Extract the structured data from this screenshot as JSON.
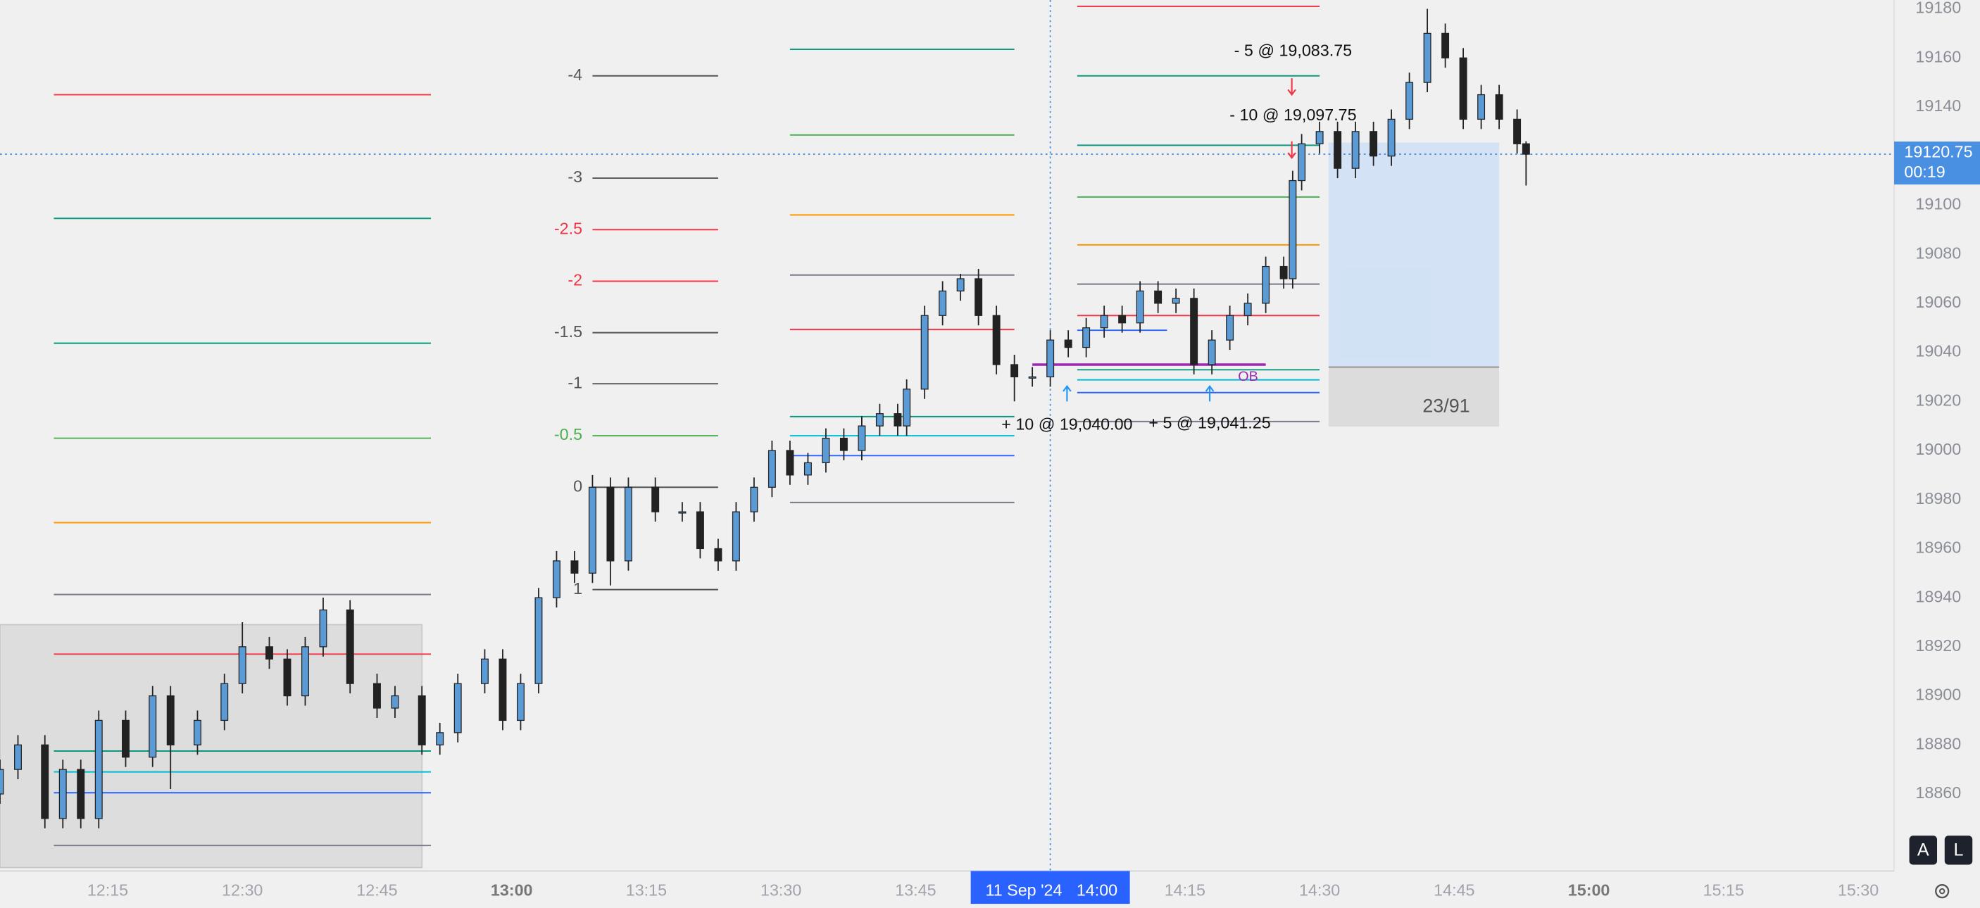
{
  "chart_data": {
    "type": "candlestick",
    "xlim": [
      "12:03",
      "15:34"
    ],
    "ylim": [
      18828.6,
      19183.6
    ],
    "yticks": [
      19180,
      19160,
      19140,
      19120,
      19100,
      19080,
      19060,
      19040,
      19020,
      19000,
      18980,
      18960,
      18940,
      18920,
      18900,
      18880,
      18860
    ],
    "xticks": [
      "12:15",
      "12:30",
      "12:45",
      "13:00",
      "13:15",
      "13:30",
      "13:45",
      "14:15",
      "14:30",
      "14:45",
      "15:00",
      "15:15",
      "15:30"
    ],
    "candles": {
      "up_color": "#5b9bd5",
      "down_color": "#222222",
      "x": [
        "12:03",
        "12:05",
        "12:08",
        "12:10",
        "12:12",
        "12:14",
        "12:17",
        "12:20",
        "12:22",
        "12:25",
        "12:28",
        "12:30",
        "12:33",
        "12:35",
        "12:37",
        "12:39",
        "12:42",
        "12:45",
        "12:47",
        "12:50",
        "12:52",
        "12:54",
        "12:57",
        "12:59",
        "13:01",
        "13:03",
        "13:05",
        "13:07",
        "13:09",
        "13:11",
        "13:13",
        "13:16",
        "13:19",
        "13:21",
        "13:23",
        "13:25",
        "13:27",
        "13:29",
        "13:31",
        "13:33",
        "13:35",
        "13:37",
        "13:39",
        "13:41",
        "13:43",
        "13:44",
        "13:46",
        "13:48",
        "13:50",
        "13:52",
        "13:54",
        "13:56",
        "13:58",
        "14:00",
        "14:02",
        "14:04",
        "14:06",
        "14:08",
        "14:10",
        "14:12",
        "14:14",
        "14:16",
        "14:18",
        "14:20",
        "14:22",
        "14:24",
        "14:26",
        "14:27",
        "14:28",
        "14:30",
        "14:32",
        "14:34",
        "14:36",
        "14:38",
        "14:40",
        "14:42",
        "14:44",
        "14:46",
        "14:48",
        "14:50",
        "14:52",
        "14:53"
      ],
      "open": [
        18860,
        18870,
        18880,
        18850,
        18870,
        18850,
        18890,
        18875,
        18900,
        18880,
        18890,
        18905,
        18920,
        18915,
        18900,
        18920,
        18935,
        18905,
        18895,
        18900,
        18880,
        18885,
        18905,
        18915,
        18890,
        18905,
        18940,
        18955,
        18950,
        18985,
        18955,
        18985,
        18975,
        18975,
        18960,
        18955,
        18975,
        18985,
        19000,
        18990,
        18995,
        19005,
        19000,
        19010,
        19015,
        19010,
        19025,
        19055,
        19065,
        19070,
        19055,
        19035,
        19030,
        19030,
        19045,
        19042,
        19050,
        19055,
        19052,
        19065,
        19060,
        19062,
        19035,
        19045,
        19055,
        19060,
        19075,
        19070,
        19110,
        19125,
        19130,
        19115,
        19130,
        19120,
        19135,
        19150,
        19170,
        19160,
        19135,
        19145,
        19135,
        19125
      ],
      "high": [
        18874,
        18884,
        18884,
        18874,
        18874,
        18894,
        18894,
        18904,
        18904,
        18894,
        18909,
        18930,
        18924,
        18919,
        18924,
        18940,
        18939,
        18909,
        18904,
        18904,
        18889,
        18909,
        18919,
        18919,
        18909,
        18944,
        18959,
        18959,
        18990,
        18989,
        18989,
        18989,
        18979,
        18979,
        18964,
        18979,
        18989,
        19004,
        19004,
        18999,
        19009,
        19009,
        19014,
        19019,
        19019,
        19029,
        19059,
        19069,
        19072,
        19074,
        19059,
        19039,
        19034,
        19049,
        19049,
        19054,
        19059,
        19059,
        19069,
        19069,
        19066,
        19066,
        19049,
        19059,
        19064,
        19079,
        19079,
        19114,
        19129,
        19134,
        19134,
        19134,
        19134,
        19139,
        19154,
        19180,
        19174,
        19164,
        19149,
        19149,
        19139,
        19126
      ],
      "low": [
        18856,
        18866,
        18846,
        18846,
        18846,
        18846,
        18871,
        18871,
        18862,
        18876,
        18886,
        18901,
        18911,
        18896,
        18896,
        18916,
        18901,
        18891,
        18891,
        18876,
        18876,
        18881,
        18901,
        18886,
        18886,
        18901,
        18936,
        18946,
        18946,
        18945,
        18951,
        18971,
        18971,
        18956,
        18951,
        18951,
        18971,
        18981,
        18986,
        18986,
        18991,
        18996,
        18996,
        19006,
        19006,
        19006,
        19021,
        19051,
        19061,
        19051,
        19031,
        19020,
        19026,
        19026,
        19038,
        19038,
        19046,
        19048,
        19048,
        19056,
        19056,
        19031,
        19031,
        19041,
        19051,
        19056,
        19066,
        19066,
        19106,
        19121,
        19111,
        19111,
        19116,
        19116,
        19131,
        19146,
        19156,
        19131,
        19131,
        19131,
        19121,
        19108
      ],
      "close": [
        18870,
        18880,
        18850,
        18870,
        18850,
        18890,
        18875,
        18900,
        18880,
        18890,
        18905,
        18920,
        18915,
        18900,
        18920,
        18935,
        18905,
        18895,
        18900,
        18880,
        18885,
        18905,
        18915,
        18890,
        18905,
        18940,
        18955,
        18950,
        18985,
        18955,
        18985,
        18975,
        18975,
        18960,
        18955,
        18975,
        18985,
        19000,
        18990,
        18995,
        19005,
        19000,
        19010,
        19015,
        19010,
        19025,
        19055,
        19065,
        19070,
        19055,
        19035,
        19030,
        19030,
        19045,
        19042,
        19050,
        19055,
        19052,
        19065,
        19060,
        19062,
        19035,
        19045,
        19055,
        19060,
        19075,
        19070,
        19110,
        19125,
        19130,
        19115,
        19130,
        19120,
        19135,
        19150,
        19170,
        19160,
        19135,
        19145,
        19135,
        19125,
        19120.75
      ]
    },
    "range_box": {
      "x": [
        "12:03",
        "12:50"
      ],
      "top": 18929,
      "bottom": 18830,
      "color": "#d9d9d9"
    },
    "level_sets": [
      {
        "x": [
          "12:09",
          "12:51"
        ],
        "lines": [
          {
            "price": 19145,
            "color": "#f23645"
          },
          {
            "price": 19094.6,
            "color": "#089981"
          },
          {
            "price": 19043.7,
            "color": "#089981"
          },
          {
            "price": 19005,
            "color": "#4caf50"
          },
          {
            "price": 18970.6,
            "color": "#ff9800"
          },
          {
            "price": 18941.3,
            "color": "#787b86"
          },
          {
            "price": 18917,
            "color": "#f23645"
          },
          {
            "price": 18877.5,
            "color": "#089981"
          },
          {
            "price": 18869,
            "color": "#00bcd4"
          },
          {
            "price": 18860.5,
            "color": "#2962ff"
          },
          {
            "price": 18839,
            "color": "#787b86"
          }
        ]
      },
      {
        "x": [
          "13:09",
          "13:23"
        ],
        "lines": [
          {
            "label": -4,
            "price": 19152.7,
            "color": "#555555"
          },
          {
            "label": -3,
            "price": 19111,
            "color": "#555555"
          },
          {
            "label": -2.5,
            "price": 19090,
            "color": "#f23645"
          },
          {
            "label": -2,
            "price": 19069,
            "color": "#f23645"
          },
          {
            "label": -1.5,
            "price": 19048,
            "color": "#555555"
          },
          {
            "label": -1,
            "price": 19027.2,
            "color": "#555555"
          },
          {
            "label": -0.5,
            "price": 19006,
            "color": "#4caf50"
          },
          {
            "label": 0,
            "price": 18985,
            "color": "#555555"
          },
          {
            "label": 1,
            "price": 18943.3,
            "color": "#555555"
          }
        ]
      },
      {
        "x": [
          "13:31",
          "13:56"
        ],
        "lines": [
          {
            "price": 19163.5,
            "color": "#089981"
          },
          {
            "price": 19128.6,
            "color": "#4caf50"
          },
          {
            "price": 19096,
            "color": "#ff9800"
          },
          {
            "price": 19071.5,
            "color": "#787b86"
          },
          {
            "price": 19049.3,
            "color": "#f23645"
          },
          {
            "price": 19013.8,
            "color": "#089981"
          },
          {
            "price": 19006,
            "color": "#00bcd4"
          },
          {
            "price": 18997.9,
            "color": "#2962ff"
          },
          {
            "price": 18978.8,
            "color": "#787b86"
          }
        ]
      },
      {
        "x": [
          "14:03",
          "14:30"
        ],
        "lines": [
          {
            "price": 19181,
            "color": "#f23645"
          },
          {
            "price": 19152.7,
            "color": "#089981"
          },
          {
            "price": 19124.4,
            "color": "#089981"
          },
          {
            "price": 19103.3,
            "color": "#4caf50"
          },
          {
            "price": 19083.8,
            "color": "#ff9800"
          },
          {
            "price": 19067.8,
            "color": "#787b86"
          },
          {
            "price": 19055,
            "color": "#f23645"
          },
          {
            "price": 19032.9,
            "color": "#089981"
          },
          {
            "price": 19028.8,
            "color": "#00bcd4"
          },
          {
            "price": 19023.6,
            "color": "#2962ff"
          },
          {
            "price": 19011.8,
            "color": "#787b86"
          }
        ]
      },
      {
        "x": [
          "14:03",
          "14:13"
        ],
        "lines": [
          {
            "price": 19049,
            "color": "#2962ff"
          }
        ]
      }
    ],
    "order_block": {
      "x": [
        "13:58",
        "14:24"
      ],
      "price": 19035,
      "label": "OB",
      "color": "#9c27b0"
    },
    "position": {
      "x": [
        "14:31",
        "14:50"
      ],
      "target": 19125.5,
      "entry": 19034,
      "stop": 19009.7,
      "label": "23/91"
    },
    "trades": [
      {
        "text": "- 5 @ 19,083.75",
        "side": "sell"
      },
      {
        "text": "- 10 @ 19,097.75",
        "side": "sell"
      },
      {
        "text": "+ 10 @ 19,040.00",
        "side": "buy"
      },
      {
        "text": "+ 5 @ 19,041.25",
        "side": "buy"
      }
    ],
    "last_price": {
      "value": 19120.75,
      "countdown": "00:19",
      "color": "#4a90e2"
    },
    "crosshair": {
      "x": "14:00",
      "date": "11 Sep '24",
      "time": "14:00"
    },
    "buttons": [
      "A",
      "L"
    ]
  }
}
